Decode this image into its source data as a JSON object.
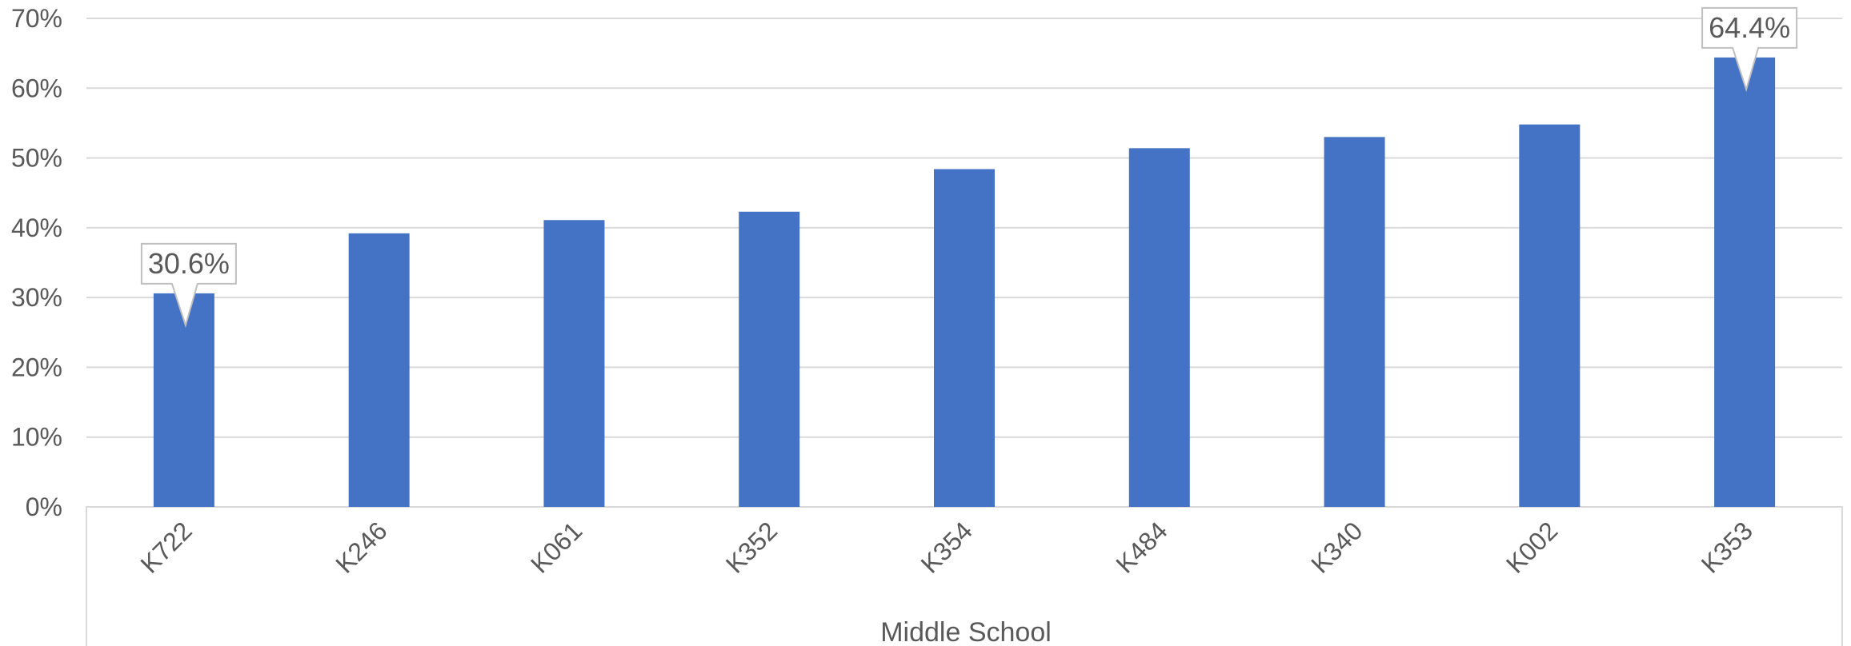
{
  "chart_data": {
    "type": "bar",
    "title": "",
    "xlabel": "Middle School",
    "ylabel": "",
    "categories": [
      "K722",
      "K246",
      "K061",
      "K352",
      "K354",
      "K484",
      "K340",
      "K002",
      "K353"
    ],
    "values": [
      30.6,
      39.2,
      41.1,
      42.3,
      48.4,
      51.4,
      53.0,
      54.8,
      64.4
    ],
    "value_unit": "%",
    "ylim": [
      0,
      70
    ],
    "yticks": [
      0,
      10,
      20,
      30,
      40,
      50,
      60,
      70
    ],
    "ytick_labels": [
      "0%",
      "10%",
      "20%",
      "30%",
      "40%",
      "50%",
      "60%",
      "70%"
    ],
    "grid": true,
    "legend": "none",
    "bar_color": "#4472C4",
    "annotations": [
      {
        "category": "K722",
        "label": "30.6%"
      },
      {
        "category": "K353",
        "label": "64.4%"
      }
    ]
  }
}
